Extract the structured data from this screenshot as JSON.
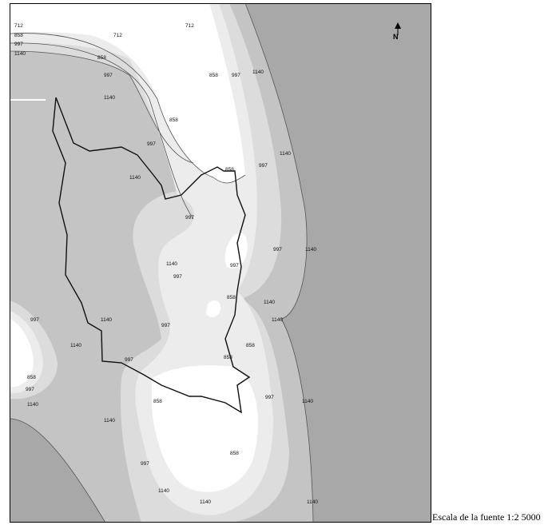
{
  "map": {
    "north_arrow_letter": "N",
    "scale_text": "Escala de la fuente 1:2 5000",
    "contour_levels": [
      "712",
      "858",
      "997",
      "1140"
    ],
    "colors": {
      "level_above_1140": "#a8a8a8",
      "level_997_1140": "#c4c4c4",
      "level_858_997": "#dcdcdc",
      "level_712_858": "#ececec",
      "level_below_712": "#ffffff",
      "contour_line": "#555555",
      "boundary_line": "#111111"
    },
    "contour_labels": [
      {
        "id": "712-a",
        "text": "712"
      },
      {
        "id": "712-b",
        "text": "712"
      },
      {
        "id": "712-c",
        "text": "712"
      },
      {
        "id": "858-a",
        "text": "858"
      },
      {
        "id": "858-b",
        "text": "858"
      },
      {
        "id": "858-c",
        "text": "858"
      },
      {
        "id": "858-d",
        "text": "858"
      },
      {
        "id": "858-e",
        "text": "858"
      },
      {
        "id": "858-f",
        "text": "858"
      },
      {
        "id": "858-g",
        "text": "858"
      },
      {
        "id": "858-h",
        "text": "858"
      },
      {
        "id": "858-i",
        "text": "858"
      },
      {
        "id": "858-j",
        "text": "858"
      },
      {
        "id": "858-k",
        "text": "858"
      },
      {
        "id": "997-a",
        "text": "997"
      },
      {
        "id": "997-b",
        "text": "997"
      },
      {
        "id": "997-c",
        "text": "997"
      },
      {
        "id": "997-d",
        "text": "997"
      },
      {
        "id": "997-e",
        "text": "997"
      },
      {
        "id": "997-f",
        "text": "997"
      },
      {
        "id": "997-g",
        "text": "997"
      },
      {
        "id": "997-h",
        "text": "997"
      },
      {
        "id": "997-i",
        "text": "997"
      },
      {
        "id": "997-j",
        "text": "997"
      },
      {
        "id": "997-k",
        "text": "997"
      },
      {
        "id": "997-l",
        "text": "997"
      },
      {
        "id": "997-m",
        "text": "997"
      },
      {
        "id": "997-n",
        "text": "997"
      },
      {
        "id": "997-o",
        "text": "997"
      },
      {
        "id": "1140-a",
        "text": "1140"
      },
      {
        "id": "1140-b",
        "text": "1140"
      },
      {
        "id": "1140-c",
        "text": "1140"
      },
      {
        "id": "1140-d",
        "text": "1140"
      },
      {
        "id": "1140-e",
        "text": "1140"
      },
      {
        "id": "1140-f",
        "text": "1140"
      },
      {
        "id": "1140-g",
        "text": "1140"
      },
      {
        "id": "1140-h",
        "text": "1140"
      },
      {
        "id": "1140-i",
        "text": "1140"
      },
      {
        "id": "1140-j",
        "text": "1140"
      },
      {
        "id": "1140-k",
        "text": "1140"
      },
      {
        "id": "1140-l",
        "text": "1140"
      },
      {
        "id": "1140-m",
        "text": "1140"
      },
      {
        "id": "1140-n",
        "text": "1140"
      },
      {
        "id": "1140-o",
        "text": "1140"
      },
      {
        "id": "1140-p",
        "text": "1140"
      },
      {
        "id": "1140-q",
        "text": "1140"
      }
    ]
  }
}
